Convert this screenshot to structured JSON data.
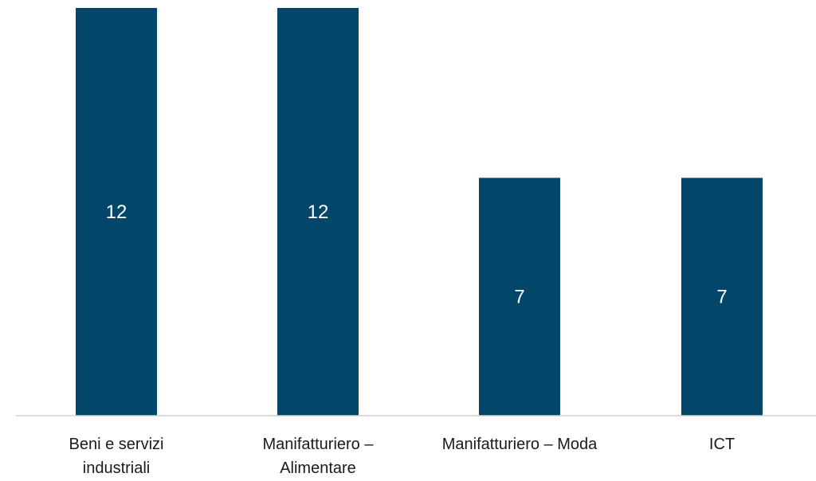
{
  "chart_data": {
    "type": "bar",
    "categories": [
      [
        "Beni e servizi",
        "industriali"
      ],
      [
        "Manifatturiero –",
        "Alimentare"
      ],
      [
        "Manifatturiero – Moda"
      ],
      [
        "ICT"
      ]
    ],
    "values": [
      12,
      12,
      7,
      7
    ],
    "ylim": [
      0,
      12
    ],
    "grid": false,
    "legend": "none",
    "colors": {
      "bar": "#02476a",
      "bar_label": "#ffffff",
      "axis": "#d0d0d0",
      "text": "#1a1a1a"
    }
  }
}
